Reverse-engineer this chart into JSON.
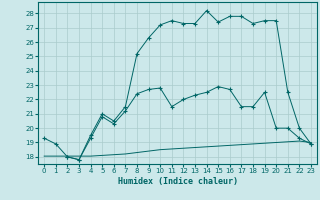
{
  "title": "",
  "xlabel": "Humidex (Indice chaleur)",
  "bg_color": "#cce8ea",
  "grid_color": "#aacccc",
  "line_color": "#006666",
  "xlim": [
    -0.5,
    23.5
  ],
  "ylim": [
    17.5,
    28.8
  ],
  "yticks": [
    18,
    19,
    20,
    21,
    22,
    23,
    24,
    25,
    26,
    27,
    28
  ],
  "xticks": [
    0,
    1,
    2,
    3,
    4,
    5,
    6,
    7,
    8,
    9,
    10,
    11,
    12,
    13,
    14,
    15,
    16,
    17,
    18,
    19,
    20,
    21,
    22,
    23
  ],
  "line1_x": [
    0,
    1,
    2,
    3,
    4,
    5,
    6,
    7,
    8,
    9,
    10,
    11,
    12,
    13,
    14,
    15,
    16,
    17,
    18,
    19,
    20,
    21,
    22,
    23
  ],
  "line1_y": [
    18.05,
    18.05,
    18.05,
    18.05,
    18.05,
    18.1,
    18.15,
    18.2,
    18.3,
    18.4,
    18.5,
    18.55,
    18.6,
    18.65,
    18.7,
    18.75,
    18.8,
    18.85,
    18.9,
    18.95,
    19.0,
    19.05,
    19.1,
    19.0
  ],
  "line2_x": [
    0,
    1,
    2,
    3,
    4,
    5,
    6,
    7,
    8,
    9,
    10,
    11,
    12,
    13,
    14,
    15,
    16,
    17,
    18,
    19,
    20,
    21,
    22,
    23
  ],
  "line2_y": [
    19.3,
    18.9,
    18.0,
    17.8,
    19.3,
    20.8,
    20.3,
    21.2,
    22.4,
    22.7,
    22.8,
    21.5,
    22.0,
    22.3,
    22.5,
    22.9,
    22.7,
    21.5,
    21.5,
    22.5,
    20.0,
    20.0,
    19.3,
    18.9
  ],
  "line3_x": [
    2,
    3,
    4,
    5,
    6,
    7,
    8,
    9,
    10,
    11,
    12,
    13,
    14,
    15,
    16,
    17,
    18,
    19,
    20,
    21,
    22,
    23
  ],
  "line3_y": [
    18.0,
    17.8,
    19.5,
    21.0,
    20.5,
    21.5,
    25.2,
    26.3,
    27.2,
    27.5,
    27.3,
    27.3,
    28.2,
    27.4,
    27.8,
    27.8,
    27.3,
    27.5,
    27.5,
    22.5,
    20.0,
    18.9
  ]
}
